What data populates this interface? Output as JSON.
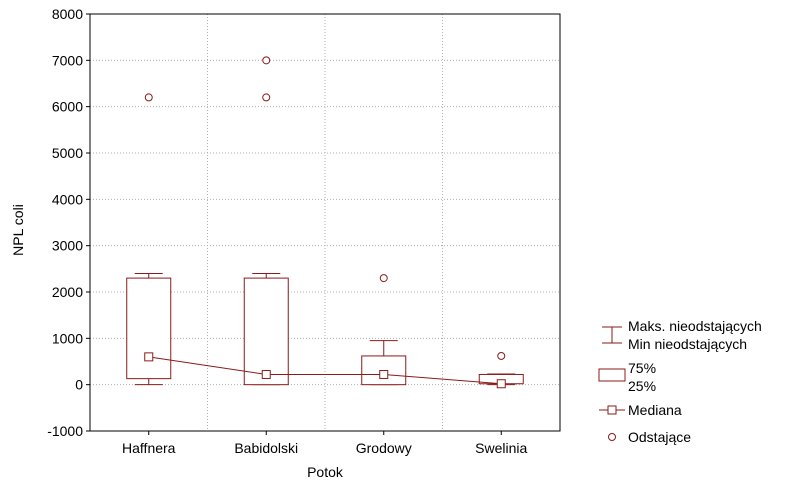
{
  "chart_data": {
    "type": "box",
    "xlabel": "Potok",
    "ylabel": "NPL coli",
    "ylim": [
      -1000,
      8000
    ],
    "yticks": [
      -1000,
      0,
      1000,
      2000,
      3000,
      4000,
      5000,
      6000,
      7000,
      8000
    ],
    "grid": true,
    "categories": [
      "Haffnera",
      "Babidolski",
      "Grodowy",
      "Swelinia"
    ],
    "boxes": [
      {
        "category": "Haffnera",
        "whisker_min": 0,
        "q1": 130,
        "median": 600,
        "q3": 2300,
        "whisker_max": 2400,
        "outliers": [
          6200
        ]
      },
      {
        "category": "Babidolski",
        "whisker_min": 0,
        "q1": 0,
        "median": 220,
        "q3": 2300,
        "whisker_max": 2400,
        "outliers": [
          6200,
          7000
        ]
      },
      {
        "category": "Grodowy",
        "whisker_min": 0,
        "q1": 0,
        "median": 220,
        "q3": 620,
        "whisker_max": 950,
        "outliers": [
          2300
        ]
      },
      {
        "category": "Swelinia",
        "whisker_min": 0,
        "q1": 20,
        "median": 20,
        "q3": 220,
        "whisker_max": 230,
        "outliers": [
          620
        ]
      }
    ],
    "legend": {
      "position": "right",
      "items": [
        {
          "symbol": "whisker",
          "lines": [
            "Maks. nieodstających",
            "Min nieodstających"
          ]
        },
        {
          "symbol": "box",
          "lines": [
            "75%",
            "25%"
          ]
        },
        {
          "symbol": "median",
          "lines": [
            "Mediana"
          ]
        },
        {
          "symbol": "outlier",
          "lines": [
            "Odstające"
          ]
        }
      ]
    },
    "colors": {
      "series": "#8b1a1a",
      "grid": "#b0b0b0",
      "axis": "#000000"
    }
  }
}
